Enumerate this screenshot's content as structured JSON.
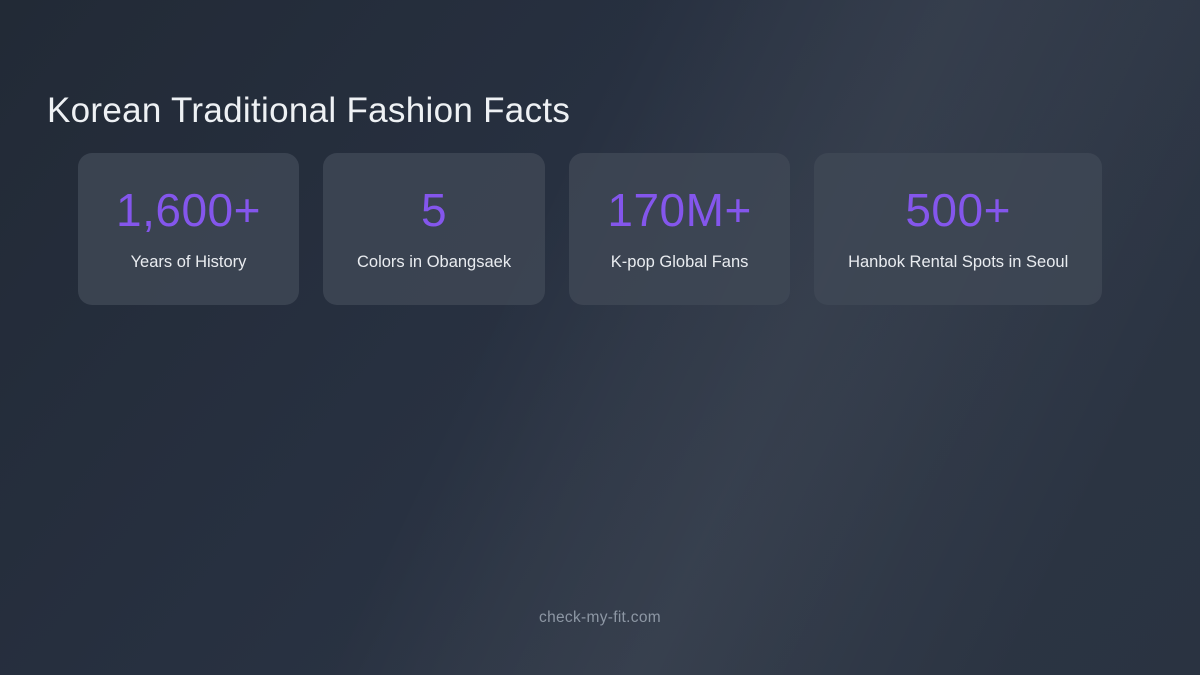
{
  "page": {
    "title": "Korean Traditional Fashion Facts",
    "footer": "check-my-fit.com"
  },
  "colors": {
    "accent_purple": "#8456ec",
    "background_dark": "#222a36",
    "background_light_streak": "#36404e",
    "card_background": "#3c4452",
    "title_text": "#eef1f4",
    "label_text": "#e9ecf0",
    "footer_text": "#8d97a4"
  },
  "stats": [
    {
      "value": "1,600+",
      "label": "Years of History"
    },
    {
      "value": "5",
      "label": "Colors in Obangsaek"
    },
    {
      "value": "170M+",
      "label": "K-pop Global Fans"
    },
    {
      "value": "500+",
      "label": "Hanbok Rental Spots in Seoul"
    }
  ]
}
